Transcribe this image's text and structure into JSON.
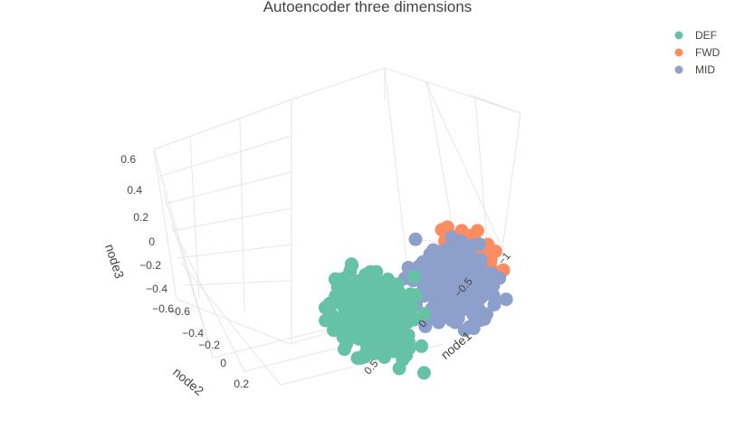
{
  "chart_data": {
    "type": "scatter",
    "title": "Autoencoder three dimensions",
    "xlabel": "node1",
    "ylabel": "node2",
    "zlabel": "node3",
    "x_ticks": [
      "−1",
      "−0.5",
      "0",
      "0.5"
    ],
    "y_ticks": [
      "−0.6",
      "−0.4",
      "−0.2",
      "0",
      "0.2"
    ],
    "z_ticks": [
      "0.6",
      "0.4",
      "0.2",
      "0",
      "−0.2",
      "−0.4",
      "−0.6"
    ],
    "xlim": [
      -1.15,
      0.85
    ],
    "ylim": [
      -0.7,
      0.35
    ],
    "zlim": [
      -0.65,
      0.7
    ],
    "grid": true,
    "legend_position": "top-right",
    "series": [
      {
        "name": "DEF",
        "color": "#66c2a5",
        "x_range": [
          0.0,
          0.9
        ],
        "y_range": [
          -0.6,
          0.25
        ],
        "z_range": [
          -0.55,
          0.55
        ]
      },
      {
        "name": "FWD",
        "color": "#fc8d62",
        "x_range": [
          -0.95,
          -0.15
        ],
        "y_range": [
          -0.55,
          0.1
        ],
        "z_range": [
          -0.2,
          0.65
        ]
      },
      {
        "name": "MID",
        "color": "#8da0cb",
        "x_range": [
          -0.9,
          0.1
        ],
        "y_range": [
          -0.6,
          0.15
        ],
        "z_range": [
          -0.5,
          0.6
        ]
      }
    ]
  }
}
